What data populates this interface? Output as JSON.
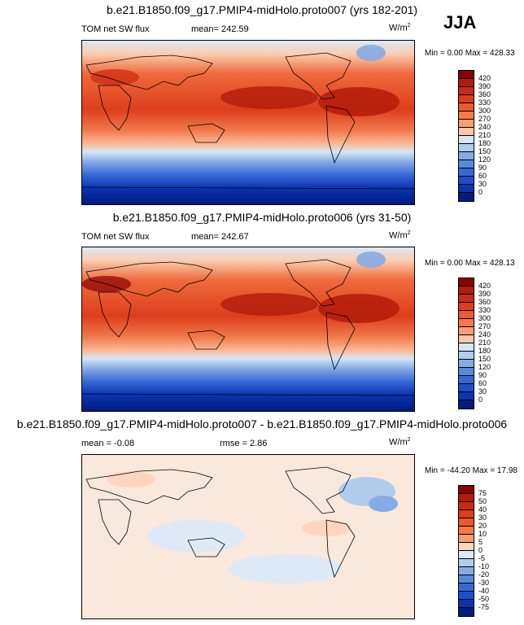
{
  "season": "JJA",
  "panels": [
    {
      "title": "b.e21.B1850.f09_g17.PMIP4-midHolo.proto007 (yrs 182-201)",
      "left_label": "TOM net SW flux",
      "center_label": "mean= 242.59",
      "units_base": "W/m",
      "units_exp": "2",
      "min_max": "Min =   0.00 Max = 428.33",
      "colorbar": {
        "labels": [
          "420",
          "390",
          "360",
          "330",
          "300",
          "270",
          "240",
          "210",
          "180",
          "150",
          "120",
          "90",
          "60",
          "30",
          "0"
        ],
        "colors": [
          "#8b0000",
          "#b21c0b",
          "#cc2a10",
          "#dd3e1c",
          "#ec5a2e",
          "#f5794a",
          "#fa9d70",
          "#fdc7a8",
          "#d5e6f5",
          "#b1cdee",
          "#86ace5",
          "#5a89db",
          "#3769d6",
          "#1e4fcb",
          "#0b34b1",
          "#001c82"
        ]
      }
    },
    {
      "title": "b.e21.B1850.f09_g17.PMIP4-midHolo.proto006 (yrs 31-50)",
      "left_label": "TOM net SW flux",
      "center_label": "mean= 242.67",
      "units_base": "W/m",
      "units_exp": "2",
      "min_max": "Min =   0.00 Max = 428.13",
      "colorbar": {
        "labels": [
          "420",
          "390",
          "360",
          "330",
          "300",
          "270",
          "240",
          "210",
          "180",
          "150",
          "120",
          "90",
          "60",
          "30",
          "0"
        ],
        "colors": [
          "#8b0000",
          "#b21c0b",
          "#cc2a10",
          "#dd3e1c",
          "#ec5a2e",
          "#f5794a",
          "#fa9d70",
          "#fdc7a8",
          "#d5e6f5",
          "#b1cdee",
          "#86ace5",
          "#5a89db",
          "#3769d6",
          "#1e4fcb",
          "#0b34b1",
          "#001c82"
        ]
      }
    },
    {
      "title": "b.e21.B1850.f09_g17.PMIP4-midHolo.proto007 - b.e21.B1850.f09_g17.PMIP4-midHolo.proto006",
      "left_label": "mean =  -0.08",
      "center_label": "rmse =   2.86",
      "units_base": "W/m",
      "units_exp": "2",
      "min_max": "Min = -44.20 Max =  17.98",
      "colorbar": {
        "labels": [
          "75",
          "50",
          "40",
          "30",
          "20",
          "10",
          "5",
          "0",
          "-5",
          "-10",
          "-20",
          "-30",
          "-40",
          "-50",
          "-75"
        ],
        "colors": [
          "#8b0000",
          "#b21c0b",
          "#cc2a10",
          "#dd3e1c",
          "#ec5a2e",
          "#f5794a",
          "#fa9d70",
          "#fdd6bd",
          "#dde9f6",
          "#b1cdee",
          "#86ace5",
          "#5a89db",
          "#3769d6",
          "#1e4fcb",
          "#0b34b1",
          "#001c82"
        ]
      }
    }
  ]
}
